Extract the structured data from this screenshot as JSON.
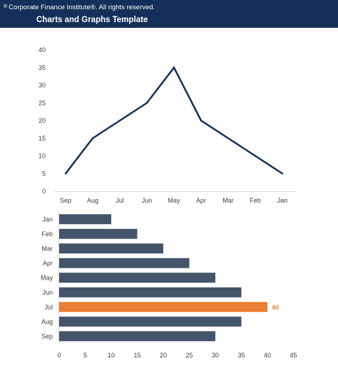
{
  "header": {
    "copyright_symbol": "®",
    "copyright": "Corporate Finance Institute®. All rights reserved.",
    "title": "Charts and Graphs Template",
    "background": "#14305a"
  },
  "chart_data": [
    {
      "type": "line",
      "categories": [
        "Sep",
        "Aug",
        "Jul",
        "Jun",
        "May",
        "Apr",
        "Mar",
        "Feb",
        "Jan"
      ],
      "values": [
        5,
        15,
        20,
        25,
        35,
        20,
        15,
        10,
        5
      ],
      "ylim": [
        0,
        40
      ],
      "yticks": [
        0,
        5,
        10,
        15,
        20,
        25,
        30,
        35,
        40
      ],
      "color": "#14305a",
      "grid": false,
      "legend": "none"
    },
    {
      "type": "bar",
      "orientation": "horizontal",
      "categories": [
        "Jan",
        "Feb",
        "Mar",
        "Apr",
        "May",
        "Jun",
        "Jul",
        "Aug",
        "Sep"
      ],
      "values": [
        10,
        15,
        20,
        25,
        30,
        35,
        40,
        35,
        30
      ],
      "xlim": [
        0,
        45
      ],
      "xticks": [
        0,
        5,
        10,
        15,
        20,
        25,
        30,
        35,
        40,
        45
      ],
      "color": "#44546a",
      "highlight": {
        "category": "Jul",
        "color": "#ed7d31",
        "label": "40"
      },
      "grid": false,
      "legend": "none"
    }
  ]
}
